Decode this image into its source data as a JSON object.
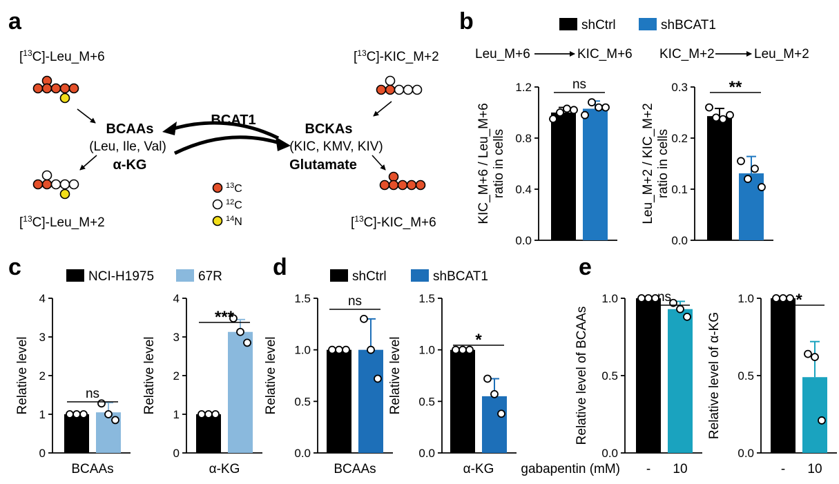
{
  "colors": {
    "black": "#000000",
    "carbon13": "#e4502a",
    "carbon12": "#ffffff",
    "nitrogen14": "#f2de1a",
    "blue": "#1f78c1",
    "light_blue": "#8ab9dd",
    "dark_blue": "#1d6fb8",
    "teal": "#1aa3bf"
  },
  "panel_labels": {
    "a": "a",
    "b": "b",
    "c": "c",
    "d": "d",
    "e": "e"
  },
  "panel_a": {
    "leu_m6": {
      "prefix": "[",
      "sup": "13",
      "rest": "C]-Leu_M+6"
    },
    "kic_m2": {
      "prefix": "[",
      "sup": "13",
      "rest": "C]-KIC_M+2"
    },
    "leu_m2": {
      "prefix": "[",
      "sup": "13",
      "rest": "C]-Leu_M+2"
    },
    "kic_m6": {
      "prefix": "[",
      "sup": "13",
      "rest": "C]-KIC_M+6"
    },
    "bcat1": "BCAT1",
    "bcaas": "BCAAs",
    "bcaas_sub": "(Leu, Ile, Val)",
    "bckas": "BCKAs",
    "bckas_sub": "(KIC, KMV, KIV)",
    "akg": "α-KG",
    "glutamate": "Glutamate",
    "legend": [
      {
        "sup": "13",
        "label": "C",
        "color": "#e4502a"
      },
      {
        "sup": "12",
        "label": "C",
        "color": "#ffffff"
      },
      {
        "sup": "14",
        "label": "N",
        "color": "#f2de1a"
      }
    ]
  },
  "legend_b": [
    "shCtrl",
    "shBCAT1"
  ],
  "legend_c": [
    "NCI-H1975",
    "67R"
  ],
  "legend_d": [
    "shCtrl",
    "shBCAT1"
  ],
  "panel_b": {
    "left_title_from": "Leu_M+6",
    "left_title_to": "KIC_M+6",
    "right_title_from": "KIC_M+2",
    "right_title_to": "Leu_M+2"
  },
  "panel_e": {
    "gabapentin_label": "gabapentin (mM)"
  },
  "chart_data": [
    {
      "id": "b-left",
      "type": "bar",
      "ylabel": [
        "KIC_M+6 / Leu_M+6",
        "ratio in cells"
      ],
      "ylim": [
        0,
        1.2
      ],
      "ticks": [
        0.0,
        0.4,
        0.8,
        1.2
      ],
      "tick_labels": [
        "0.0",
        "0.4",
        "0.8",
        "1.2"
      ],
      "categories": [
        "shCtrl",
        "shBCAT1"
      ],
      "xtick_labels": [
        "",
        ""
      ],
      "values": [
        1.0,
        1.03
      ],
      "errors": [
        0.04,
        0.06
      ],
      "points": [
        [
          0.95,
          1.0,
          1.03,
          1.02
        ],
        [
          0.98,
          1.08,
          1.04,
          1.04
        ]
      ],
      "significance": "ns"
    },
    {
      "id": "b-right",
      "type": "bar",
      "ylabel": [
        "Leu_M+2 / KIC_M+2",
        "ratio in cells"
      ],
      "ylim": [
        0,
        0.3
      ],
      "ticks": [
        0.0,
        0.1,
        0.2,
        0.3
      ],
      "tick_labels": [
        "0.0",
        "0.1",
        "0.2",
        "0.3"
      ],
      "categories": [
        "shCtrl",
        "shBCAT1"
      ],
      "xtick_labels": [
        "",
        ""
      ],
      "values": [
        0.243,
        0.131
      ],
      "errors": [
        0.015,
        0.033
      ],
      "points": [
        [
          0.26,
          0.24,
          0.237,
          0.245
        ],
        [
          0.155,
          0.12,
          0.14,
          0.104
        ]
      ],
      "significance": "**"
    },
    {
      "id": "c-left",
      "type": "bar",
      "ylabel": [
        "Relative level"
      ],
      "ylim": [
        0,
        4
      ],
      "ticks": [
        0,
        1,
        2,
        3,
        4
      ],
      "tick_labels": [
        "0",
        "1",
        "2",
        "3",
        "4"
      ],
      "categories": [
        "NCI-H1975",
        "67R"
      ],
      "xtick_labels": [
        "BCAAs"
      ],
      "values": [
        1.0,
        1.05
      ],
      "errors": [
        0,
        0.25
      ],
      "points": [
        [
          1.0,
          1.0,
          1.0
        ],
        [
          1.28,
          1.0,
          0.85
        ]
      ],
      "significance": "ns"
    },
    {
      "id": "c-right",
      "type": "bar",
      "ylabel": [
        "Relative level"
      ],
      "ylim": [
        0,
        4
      ],
      "ticks": [
        0,
        1,
        2,
        3,
        4
      ],
      "tick_labels": [
        "0",
        "1",
        "2",
        "3",
        "4"
      ],
      "categories": [
        "NCI-H1975",
        "67R"
      ],
      "xtick_labels": [
        "α-KG"
      ],
      "values": [
        1.0,
        3.13
      ],
      "errors": [
        0,
        0.32
      ],
      "points": [
        [
          1.0,
          1.0,
          1.0
        ],
        [
          3.48,
          3.13,
          2.85
        ]
      ],
      "significance": "***"
    },
    {
      "id": "d-left",
      "type": "bar",
      "ylabel": [
        "Relative level"
      ],
      "ylim": [
        0,
        1.5
      ],
      "ticks": [
        0.0,
        0.5,
        1.0,
        1.5
      ],
      "tick_labels": [
        "0.0",
        "0.5",
        "1.0",
        "1.5"
      ],
      "categories": [
        "shCtrl",
        "shBCAT1"
      ],
      "xtick_labels": [
        "BCAAs"
      ],
      "values": [
        1.0,
        1.0
      ],
      "errors": [
        0,
        0.3
      ],
      "points": [
        [
          1.0,
          1.0,
          1.0
        ],
        [
          1.3,
          1.0,
          0.72
        ]
      ],
      "significance": "ns"
    },
    {
      "id": "d-right",
      "type": "bar",
      "ylabel": [
        "Relative level"
      ],
      "ylim": [
        0,
        1.5
      ],
      "ticks": [
        0.0,
        0.5,
        1.0,
        1.5
      ],
      "tick_labels": [
        "0.0",
        "0.5",
        "1.0",
        "1.5"
      ],
      "categories": [
        "shCtrl",
        "shBCAT1"
      ],
      "xtick_labels": [
        "α-KG"
      ],
      "values": [
        1.0,
        0.55
      ],
      "errors": [
        0,
        0.17
      ],
      "points": [
        [
          1.0,
          1.0,
          1.0
        ],
        [
          0.72,
          0.57,
          0.38
        ]
      ],
      "significance": "*"
    },
    {
      "id": "e-left",
      "type": "bar",
      "ylabel": [
        "Relative level of BCAAs"
      ],
      "ylim": [
        0,
        1.0
      ],
      "ticks": [
        0.0,
        0.5,
        1.0
      ],
      "tick_labels": [
        "0.0",
        "0.5",
        "1.0"
      ],
      "categories": [
        "-",
        "10"
      ],
      "xtick_labels": [
        "-",
        "10"
      ],
      "values": [
        1.0,
        0.93
      ],
      "errors": [
        0,
        0.05
      ],
      "points": [
        [
          1.0,
          1.0,
          1.0
        ],
        [
          0.97,
          0.93,
          0.88
        ]
      ],
      "significance": "ns"
    },
    {
      "id": "e-right",
      "type": "bar",
      "ylabel": [
        "Relative level of α-KG"
      ],
      "ylim": [
        0,
        1.0
      ],
      "ticks": [
        0.0,
        0.5,
        1.0
      ],
      "tick_labels": [
        "0.0",
        "0.5",
        "1.0"
      ],
      "categories": [
        "-",
        "10"
      ],
      "xtick_labels": [
        "-",
        "10"
      ],
      "values": [
        1.0,
        0.49
      ],
      "errors": [
        0,
        0.23
      ],
      "points": [
        [
          1.0,
          1.0,
          1.0
        ],
        [
          0.64,
          0.62,
          0.21
        ]
      ],
      "significance": "*"
    }
  ]
}
